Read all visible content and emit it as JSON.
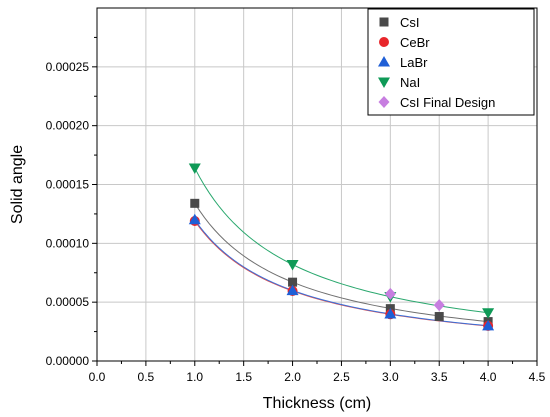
{
  "chart_data": {
    "type": "scatter",
    "xlabel": "Thickness (cm)",
    "ylabel": "Solid angle",
    "xlim": [
      0.0,
      4.5
    ],
    "ylim": [
      0.0,
      0.0003
    ],
    "x_ticks": [
      "0.0",
      "0.5",
      "1.0",
      "1.5",
      "2.0",
      "2.5",
      "3.0",
      "3.5",
      "4.0",
      "4.5"
    ],
    "y_ticks": [
      "0.00000",
      "0.00005",
      "0.00010",
      "0.00015",
      "0.00020",
      "0.00025"
    ],
    "grid": true,
    "legend_position": "top-right",
    "series": [
      {
        "name": "CsI",
        "marker": "square",
        "color": "#4a4a4a",
        "fit_color": "#707070",
        "points": [
          [
            1.0,
            0.000134
          ],
          [
            2.0,
            6.7e-05
          ],
          [
            3.0,
            4.45e-05
          ],
          [
            3.5,
            3.78e-05
          ],
          [
            4.0,
            3.35e-05
          ]
        ]
      },
      {
        "name": "CeBr",
        "marker": "circle",
        "color": "#e8262b",
        "fit_color": "#e05050",
        "points": [
          [
            1.0,
            0.000119
          ],
          [
            2.0,
            5.95e-05
          ],
          [
            3.0,
            3.97e-05
          ],
          [
            4.0,
            2.98e-05
          ]
        ]
      },
      {
        "name": "LaBr",
        "marker": "triangle-up",
        "color": "#1f5fd6",
        "fit_color": "#3a6fd8",
        "points": [
          [
            1.0,
            0.00012
          ],
          [
            2.0,
            5.98e-05
          ],
          [
            3.0,
            3.99e-05
          ],
          [
            4.0,
            2.99e-05
          ]
        ]
      },
      {
        "name": "NaI",
        "marker": "triangle-down",
        "color": "#0f9a57",
        "fit_color": "#2aa86e",
        "points": [
          [
            1.0,
            0.000164
          ],
          [
            2.0,
            8.2e-05
          ],
          [
            3.0,
            5.47e-05
          ],
          [
            4.0,
            4.1e-05
          ]
        ]
      },
      {
        "name": "CsI Final Design",
        "marker": "diamond",
        "color": "#c77ee0",
        "fit_color": null,
        "points": [
          [
            3.0,
            5.7e-05
          ],
          [
            3.5,
            4.75e-05
          ]
        ]
      }
    ]
  }
}
